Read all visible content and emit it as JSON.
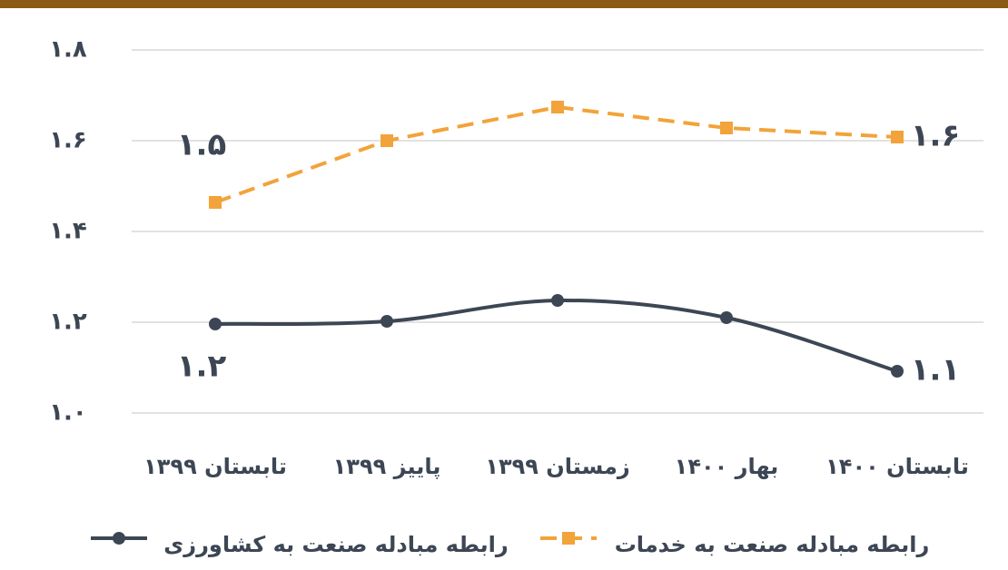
{
  "chart_data": {
    "type": "line",
    "categories": [
      "تابستان ۱۳۹۹",
      "پاییز ۱۳۹۹",
      "زمستان ۱۳۹۹",
      "بهار ۱۴۰۰",
      "تابستان ۱۴۰۰"
    ],
    "series": [
      {
        "name": "رابطه مبادله صنعت به خدمات",
        "color": "#f2a33a",
        "dashed": true,
        "marker": "square",
        "values": [
          1.464,
          1.6,
          1.674,
          1.628,
          1.608
        ],
        "value_labels": [
          "۱.۵",
          null,
          null,
          null,
          "۱.۶"
        ]
      },
      {
        "name": "رابطه مبادله صنعت به کشاورزی",
        "color": "#3d4654",
        "dashed": false,
        "marker": "circle",
        "smooth": true,
        "values": [
          1.196,
          1.202,
          1.248,
          1.21,
          1.092
        ],
        "value_labels": [
          "۱.۲",
          null,
          null,
          null,
          "۱.۱"
        ]
      }
    ],
    "ylim": [
      1.0,
      1.8
    ],
    "yticks": [
      {
        "value": 1.0,
        "label": "۱.۰"
      },
      {
        "value": 1.2,
        "label": "۱.۲"
      },
      {
        "value": 1.4,
        "label": "۱.۴"
      },
      {
        "value": 1.6,
        "label": "۱.۶"
      },
      {
        "value": 1.8,
        "label": "۱.۸"
      }
    ],
    "grid": true
  }
}
